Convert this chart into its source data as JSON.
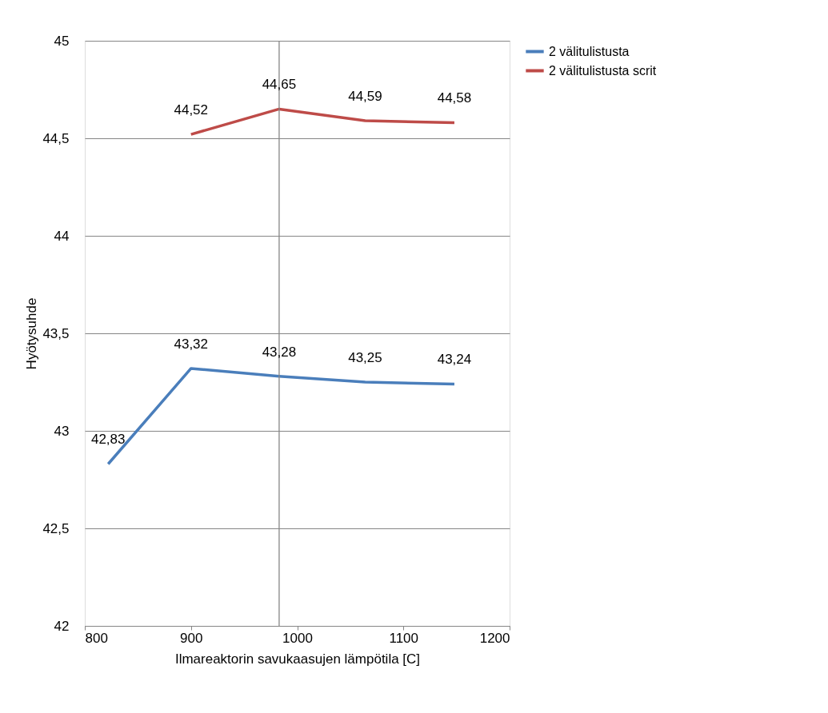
{
  "chart_data": {
    "type": "line",
    "xlabel": "Ilmareaktorin savukaasujen lämpötila [C]",
    "ylabel": "Hyötysuhde",
    "xlim": [
      800,
      1200
    ],
    "xticks": [
      800,
      900,
      1000,
      1100,
      1200
    ],
    "ylim": [
      42,
      45
    ],
    "yticks": [
      {
        "value": 42,
        "label": "42"
      },
      {
        "value": 42.5,
        "label": "42,5"
      },
      {
        "value": 43,
        "label": "43"
      },
      {
        "value": 43.5,
        "label": "43,5"
      },
      {
        "value": 44,
        "label": "44"
      },
      {
        "value": 44.5,
        "label": "44,5"
      },
      {
        "value": 45,
        "label": "45"
      }
    ],
    "grid": "y",
    "legend": "right",
    "marker": "none",
    "line_style": "solid",
    "ref_lines": [
      {
        "axis": "x",
        "value": 983,
        "color": "#868686"
      }
    ],
    "series": [
      {
        "name": "2 välitulistusta",
        "color": "#4a7ebb",
        "x": [
          822,
          900,
          983,
          1064,
          1148
        ],
        "values": [
          42.83,
          43.32,
          43.28,
          43.25,
          43.24
        ],
        "value_labels": [
          "42,83",
          "43,32",
          "43,28",
          "43,25",
          "43,24"
        ]
      },
      {
        "name": "2 välitulistusta scrit",
        "color": "#be4b48",
        "x": [
          900,
          983,
          1064,
          1148
        ],
        "values": [
          44.52,
          44.65,
          44.59,
          44.58
        ],
        "value_labels": [
          "44,52",
          "44,65",
          "44,59",
          "44,58"
        ]
      }
    ]
  }
}
